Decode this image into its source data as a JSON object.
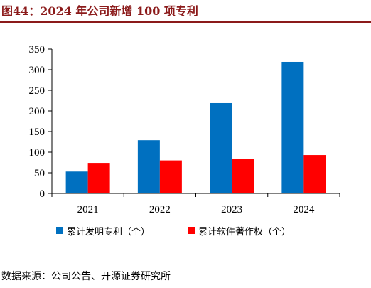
{
  "header": {
    "title": "图44：2024 年公司新增 100 项专利"
  },
  "footer": {
    "source": "数据来源：公司公告、开源证券研究所"
  },
  "chart_data": {
    "type": "bar",
    "title": "",
    "xlabel": "",
    "ylabel": "",
    "categories": [
      "2021",
      "2022",
      "2023",
      "2024"
    ],
    "ylim": [
      0,
      350
    ],
    "yticks": [
      0,
      50,
      100,
      150,
      200,
      250,
      300,
      350
    ],
    "grid": false,
    "legend_position": "bottom",
    "series": [
      {
        "name": "累计发明专利（个）",
        "color": "#0070c0",
        "values": [
          53,
          129,
          219,
          319
        ]
      },
      {
        "name": "累计软件著作权（个）",
        "color": "#ff0000",
        "values": [
          74,
          80,
          83,
          93
        ]
      }
    ]
  }
}
